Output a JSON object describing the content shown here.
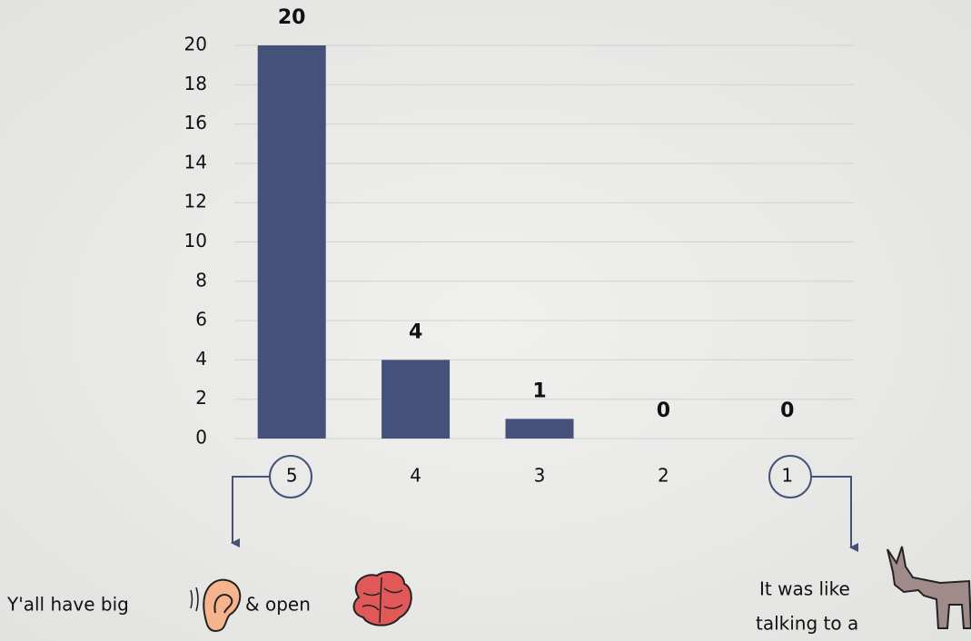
{
  "chart_data": {
    "type": "bar",
    "categories": [
      "5",
      "4",
      "3",
      "2",
      "1"
    ],
    "values": [
      20,
      4,
      1,
      0,
      0
    ],
    "color": "#44527a",
    "ylim": [
      0,
      20
    ],
    "yticks": [
      0,
      2,
      4,
      6,
      8,
      10,
      12,
      14,
      16,
      18,
      20
    ],
    "grid": true,
    "data_labels": true,
    "annotations": [
      "Y'all have big",
      "& open",
      "It was like",
      "talking to a"
    ]
  }
}
